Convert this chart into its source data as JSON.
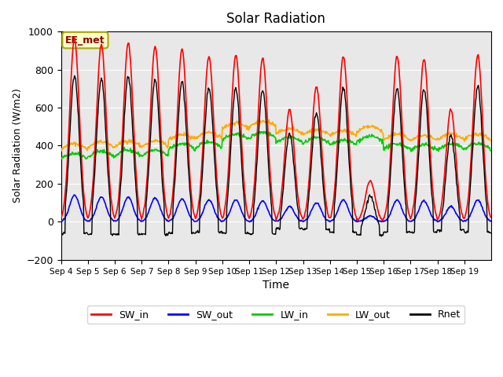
{
  "title": "Solar Radiation",
  "xlabel": "Time",
  "ylabel": "Solar Radiation (W/m2)",
  "ylim": [
    -200,
    1000
  ],
  "bg_color": "#e8e8e8",
  "annotation_text": "EE_met",
  "annotation_bg": "#ffffcc",
  "annotation_edge": "#aaaa00",
  "tick_labels": [
    "Sep 4",
    "Sep 5",
    "Sep 6",
    "Sep 7",
    "Sep 8",
    "Sep 9",
    "Sep 10",
    "Sep 11",
    "Sep 12",
    "Sep 13",
    "Sep 14",
    "Sep 15",
    "Sep 16",
    "Sep 17",
    "Sep 18",
    "Sep 19"
  ],
  "colors": {
    "SW_in": "#ff0000",
    "SW_out": "#0000ff",
    "LW_in": "#00cc00",
    "LW_out": "#ffaa00",
    "Rnet": "#000000"
  },
  "n_days": 16,
  "pts_per_day": 48,
  "SW_in_peaks": [
    960,
    930,
    940,
    920,
    905,
    870,
    875,
    860,
    590,
    710,
    870,
    215,
    870,
    855,
    590,
    875
  ],
  "SW_out_peaks": [
    140,
    130,
    130,
    125,
    120,
    115,
    115,
    110,
    80,
    100,
    115,
    30,
    115,
    110,
    80,
    115
  ],
  "LW_in_base": [
    330,
    340,
    345,
    345,
    380,
    390,
    430,
    440,
    415,
    410,
    400,
    420,
    380,
    375,
    380,
    380
  ],
  "LW_out_base": [
    380,
    390,
    395,
    395,
    430,
    440,
    490,
    500,
    460,
    455,
    450,
    470,
    430,
    425,
    430,
    430
  ],
  "Rnet_night": [
    -60,
    -65,
    -65,
    -65,
    -60,
    -55,
    -60,
    -65,
    -35,
    -40,
    -55,
    -70,
    -55,
    -55,
    -45,
    -55
  ]
}
